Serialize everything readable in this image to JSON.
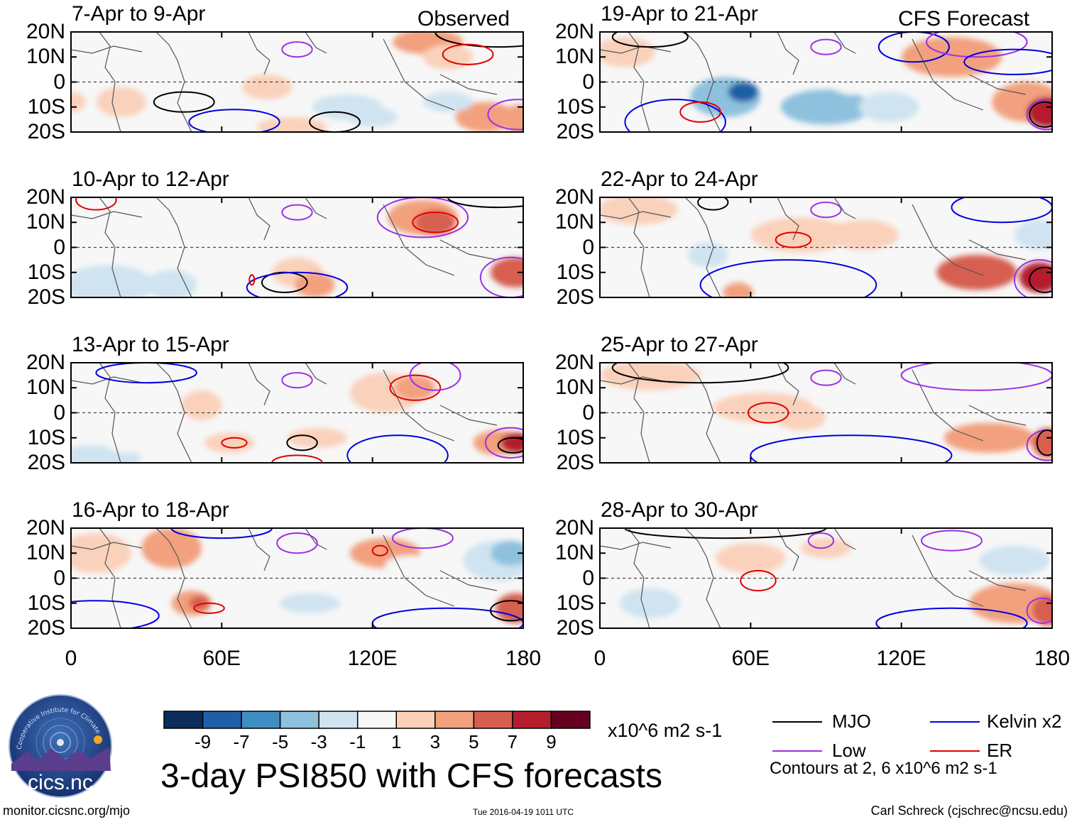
{
  "chart_data": {
    "type": "heatmap",
    "title": "3-day PSI850 with CFS forecasts",
    "units": "x10^6 m2 s-1",
    "columns": [
      "Observed",
      "CFS Forecast"
    ],
    "xlim": [
      0,
      180
    ],
    "ylim": [
      -20,
      20
    ],
    "x_ticks": [
      "0",
      "60E",
      "120E",
      "180"
    ],
    "y_ticks": [
      "20N",
      "10N",
      "0",
      "10S",
      "20S"
    ],
    "colorbar": {
      "levels": [
        -9,
        -7,
        -5,
        -3,
        -1,
        1,
        3,
        5,
        7,
        9
      ],
      "labels": [
        "-9",
        "-7",
        "-5",
        "-3",
        "-1",
        "1",
        "3",
        "5",
        "7",
        "9"
      ],
      "colors": [
        "#0b2d5c",
        "#1f5fa6",
        "#3f8fc4",
        "#8ec1de",
        "#cfe4f0",
        "#f7f7f7",
        "#fad1bb",
        "#f2a07e",
        "#d65f50",
        "#b41f2d",
        "#67001f"
      ]
    },
    "panels": [
      {
        "label": "7-Apr to 9-Apr",
        "column": 0,
        "row": 0,
        "blobs": [
          [
            20,
            -8,
            10,
            6,
            2
          ],
          [
            55,
            12,
            8,
            5,
            -1
          ],
          [
            78,
            -2,
            10,
            5,
            1
          ],
          [
            88,
            -18,
            14,
            4,
            2
          ],
          [
            110,
            -10,
            14,
            5,
            -2
          ],
          [
            120,
            -14,
            10,
            4,
            -2
          ],
          [
            142,
            16,
            14,
            5,
            3
          ],
          [
            150,
            10,
            10,
            5,
            2
          ],
          [
            165,
            -14,
            12,
            6,
            3
          ],
          [
            178,
            -15,
            6,
            6,
            4
          ],
          [
            0,
            -8,
            6,
            4,
            2
          ],
          [
            150,
            -8,
            10,
            4,
            -2
          ]
        ],
        "contours": [
          [
            "mjo",
            45,
            -8,
            12,
            4
          ],
          [
            "kelvin",
            65,
            -16,
            18,
            5
          ],
          [
            "low",
            90,
            13,
            6,
            3
          ],
          [
            "mjo",
            105,
            -16,
            10,
            4
          ],
          [
            "mjo",
            170,
            20,
            25,
            6
          ],
          [
            "er",
            158,
            11,
            10,
            4
          ],
          [
            "low",
            178,
            -13,
            12,
            6
          ]
        ]
      },
      {
        "label": "10-Apr to 12-Apr",
        "column": 0,
        "row": 1,
        "blobs": [
          [
            15,
            -15,
            18,
            8,
            -3
          ],
          [
            40,
            -15,
            10,
            6,
            -2
          ],
          [
            90,
            -10,
            10,
            6,
            2
          ],
          [
            97,
            -15,
            8,
            5,
            4
          ],
          [
            140,
            12,
            14,
            7,
            4
          ],
          [
            145,
            10,
            8,
            5,
            5
          ],
          [
            165,
            5,
            10,
            5,
            -1
          ],
          [
            177,
            -10,
            10,
            6,
            6
          ],
          [
            60,
            2,
            20,
            8,
            -1
          ]
        ],
        "contours": [
          [
            "er",
            10,
            19,
            8,
            4
          ],
          [
            "low",
            90,
            14,
            6,
            3
          ],
          [
            "low",
            140,
            12,
            18,
            8
          ],
          [
            "er",
            145,
            10,
            9,
            4
          ],
          [
            "mjo",
            85,
            -14,
            9,
            4
          ],
          [
            "kelvin",
            90,
            -16,
            20,
            6
          ],
          [
            "er",
            72,
            -13,
            1,
            2
          ],
          [
            "low",
            175,
            -12,
            12,
            8
          ],
          [
            "mjo",
            170,
            20,
            20,
            4
          ]
        ]
      },
      {
        "label": "13-Apr to 15-Apr",
        "column": 0,
        "row": 2,
        "blobs": [
          [
            10,
            -18,
            18,
            5,
            -2
          ],
          [
            25,
            -10,
            14,
            6,
            -1
          ],
          [
            52,
            3,
            8,
            6,
            2
          ],
          [
            63,
            -12,
            10,
            4,
            2
          ],
          [
            98,
            -10,
            12,
            4,
            2
          ],
          [
            125,
            8,
            14,
            8,
            2
          ],
          [
            137,
            10,
            8,
            5,
            3
          ],
          [
            170,
            -12,
            10,
            5,
            3
          ],
          [
            177,
            -12,
            6,
            4,
            7
          ],
          [
            150,
            -15,
            10,
            4,
            -1
          ]
        ],
        "contours": [
          [
            "kelvin",
            30,
            16,
            20,
            4
          ],
          [
            "low",
            90,
            13,
            6,
            3
          ],
          [
            "er",
            137,
            10,
            10,
            5
          ],
          [
            "er",
            65,
            -12,
            5,
            2
          ],
          [
            "mjo",
            92,
            -12,
            6,
            3
          ],
          [
            "er",
            90,
            -20,
            10,
            3
          ],
          [
            "kelvin",
            130,
            -17,
            20,
            8
          ],
          [
            "low",
            175,
            -12,
            10,
            6
          ],
          [
            "mjo",
            176,
            -13,
            6,
            3
          ],
          [
            "low",
            145,
            15,
            10,
            6
          ]
        ]
      },
      {
        "label": "16-Apr to 18-Apr",
        "column": 0,
        "row": 3,
        "blobs": [
          [
            10,
            10,
            14,
            8,
            2
          ],
          [
            40,
            12,
            12,
            8,
            3
          ],
          [
            48,
            -10,
            8,
            5,
            3
          ],
          [
            51,
            -10,
            4,
            3,
            6
          ],
          [
            75,
            -5,
            14,
            6,
            -1
          ],
          [
            95,
            -10,
            12,
            4,
            -2
          ],
          [
            125,
            10,
            14,
            6,
            3
          ],
          [
            135,
            5,
            10,
            4,
            -1
          ],
          [
            170,
            7,
            14,
            8,
            -3
          ],
          [
            175,
            10,
            8,
            5,
            -5
          ],
          [
            177,
            -12,
            8,
            6,
            6
          ],
          [
            150,
            -15,
            10,
            5,
            -1
          ]
        ],
        "contours": [
          [
            "low",
            90,
            14,
            8,
            4
          ],
          [
            "kelvin",
            60,
            20,
            20,
            4
          ],
          [
            "er",
            55,
            -12,
            6,
            2
          ],
          [
            "kelvin",
            10,
            -15,
            25,
            6
          ],
          [
            "er",
            123,
            11,
            3,
            2
          ],
          [
            "low",
            140,
            16,
            12,
            4
          ],
          [
            "kelvin",
            150,
            -18,
            30,
            6
          ],
          [
            "mjo",
            175,
            -13,
            8,
            4
          ]
        ]
      },
      {
        "label": "19-Apr to 21-Apr",
        "column": 1,
        "row": 0,
        "blobs": [
          [
            10,
            12,
            12,
            6,
            2
          ],
          [
            50,
            -6,
            14,
            8,
            -4
          ],
          [
            57,
            -4,
            6,
            4,
            -9
          ],
          [
            90,
            -10,
            18,
            7,
            -4
          ],
          [
            115,
            -10,
            12,
            6,
            -3
          ],
          [
            140,
            10,
            20,
            8,
            3
          ],
          [
            170,
            -8,
            14,
            8,
            4
          ],
          [
            178,
            -12,
            8,
            6,
            8
          ],
          [
            100,
            0,
            8,
            5,
            -1
          ]
        ],
        "contours": [
          [
            "mjo",
            20,
            18,
            15,
            4
          ],
          [
            "kelvin",
            30,
            -16,
            20,
            9
          ],
          [
            "er",
            40,
            -12,
            8,
            4
          ],
          [
            "low",
            90,
            14,
            6,
            3
          ],
          [
            "kelvin",
            125,
            14,
            14,
            6
          ],
          [
            "low",
            150,
            16,
            20,
            6
          ],
          [
            "low",
            178,
            -13,
            8,
            6
          ],
          [
            "mjo",
            177,
            -13,
            6,
            5
          ],
          [
            "kelvin",
            165,
            8,
            20,
            5
          ]
        ]
      },
      {
        "label": "22-Apr to 24-Apr",
        "column": 1,
        "row": 1,
        "blobs": [
          [
            15,
            15,
            16,
            6,
            2
          ],
          [
            43,
            -3,
            8,
            5,
            -3
          ],
          [
            80,
            5,
            20,
            7,
            2
          ],
          [
            105,
            5,
            14,
            6,
            2
          ],
          [
            150,
            -10,
            16,
            7,
            5
          ],
          [
            175,
            -12,
            8,
            6,
            8
          ],
          [
            55,
            -18,
            6,
            4,
            3
          ],
          [
            175,
            5,
            10,
            6,
            -2
          ]
        ],
        "contours": [
          [
            "mjo",
            45,
            18,
            6,
            3
          ],
          [
            "low",
            90,
            15,
            6,
            3
          ],
          [
            "er",
            77,
            3,
            7,
            3
          ],
          [
            "kelvin",
            75,
            -15,
            35,
            10
          ],
          [
            "low",
            175,
            -13,
            10,
            8
          ],
          [
            "mjo",
            177,
            -13,
            6,
            5
          ],
          [
            "kelvin",
            160,
            16,
            20,
            6
          ]
        ]
      },
      {
        "label": "25-Apr to 27-Apr",
        "column": 1,
        "row": 2,
        "blobs": [
          [
            20,
            15,
            20,
            6,
            2
          ],
          [
            65,
            2,
            20,
            6,
            1
          ],
          [
            80,
            -2,
            10,
            5,
            1
          ],
          [
            155,
            -10,
            18,
            6,
            4
          ],
          [
            178,
            -12,
            6,
            6,
            6
          ],
          [
            155,
            2,
            10,
            4,
            -1
          ],
          [
            50,
            -15,
            20,
            5,
            -1
          ]
        ],
        "contours": [
          [
            "mjo",
            40,
            18,
            35,
            6
          ],
          [
            "low",
            90,
            14,
            6,
            3
          ],
          [
            "er",
            67,
            0,
            8,
            4
          ],
          [
            "kelvin",
            100,
            -17,
            40,
            8
          ],
          [
            "low",
            150,
            15,
            30,
            6
          ],
          [
            "low",
            178,
            -13,
            8,
            6
          ],
          [
            "mjo",
            178,
            -12,
            4,
            5
          ]
        ]
      },
      {
        "label": "28-Apr to 30-Apr",
        "column": 1,
        "row": 3,
        "blobs": [
          [
            20,
            -10,
            12,
            6,
            -2
          ],
          [
            60,
            8,
            14,
            6,
            1
          ],
          [
            90,
            12,
            10,
            4,
            1
          ],
          [
            120,
            -5,
            14,
            5,
            -1
          ],
          [
            165,
            -10,
            18,
            8,
            4
          ],
          [
            178,
            -13,
            6,
            6,
            6
          ],
          [
            165,
            7,
            14,
            6,
            -2
          ]
        ],
        "contours": [
          [
            "mjo",
            50,
            20,
            40,
            4
          ],
          [
            "low",
            88,
            15,
            5,
            3
          ],
          [
            "er",
            63,
            -1,
            7,
            4
          ],
          [
            "low",
            140,
            15,
            12,
            4
          ],
          [
            "kelvin",
            140,
            -18,
            30,
            6
          ],
          [
            "low",
            176,
            -13,
            6,
            5
          ]
        ]
      }
    ],
    "legend": [
      {
        "name": "MJO",
        "key": "mjo",
        "color": "#000000"
      },
      {
        "name": "Kelvin x2",
        "key": "kelvin",
        "color": "#0000e0"
      },
      {
        "name": "Low",
        "key": "low",
        "color": "#9b30e6"
      },
      {
        "name": "ER",
        "key": "er",
        "color": "#e00000"
      }
    ],
    "contour_note": "Contours at 2, 6 x10^6 m2 s-1"
  },
  "logo": {
    "text": "cics.nc",
    "ring_text": "Cooperative Institute for Climate and Satellites"
  },
  "footer": {
    "left": "monitor.cicsnc.org/mjo",
    "center": "Tue 2016-04-19 1011 UTC",
    "right": "Carl Schreck (cjschrec@ncsu.edu)"
  }
}
